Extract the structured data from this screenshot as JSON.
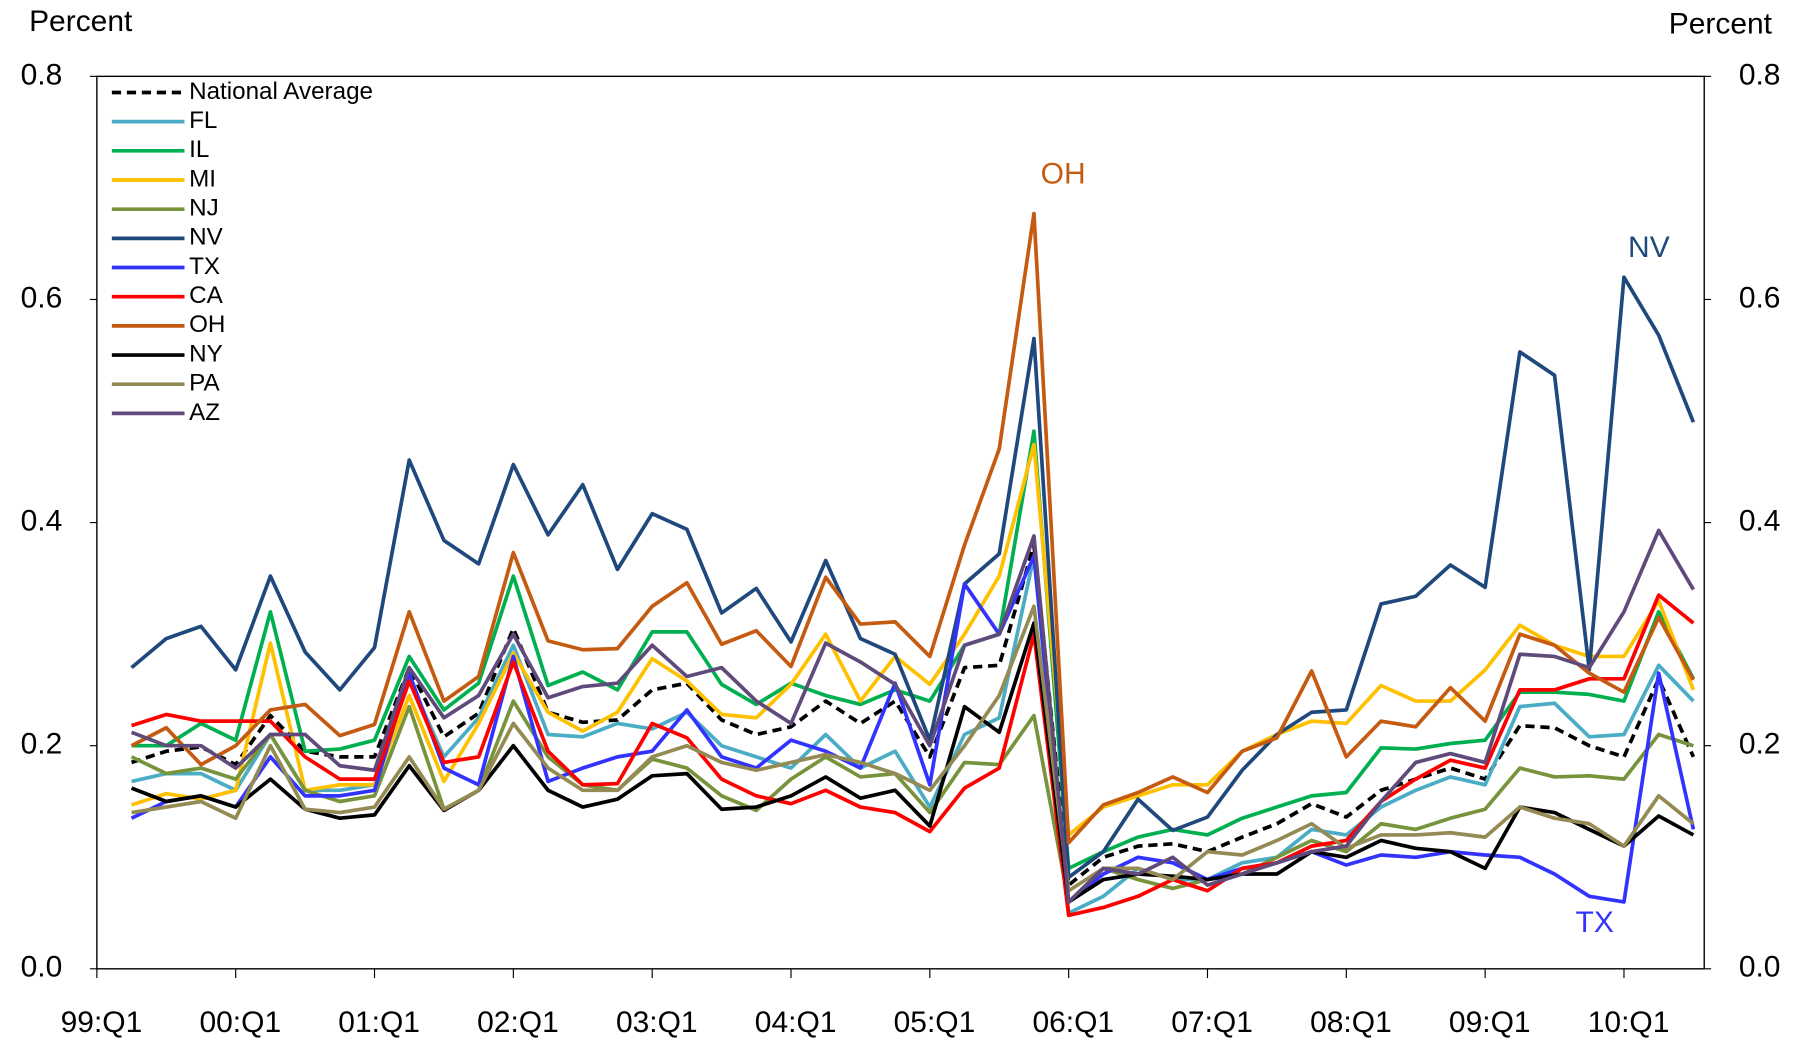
{
  "chart_data": {
    "type": "line",
    "y_label": "Percent",
    "y2_label": "Percent",
    "categories": [
      "99:Q1",
      null,
      null,
      null,
      "00:Q1",
      null,
      null,
      null,
      "01:Q1",
      null,
      null,
      null,
      "02:Q1",
      null,
      null,
      null,
      "03:Q1",
      null,
      null,
      null,
      "04:Q1",
      null,
      null,
      null,
      "05:Q1",
      null,
      null,
      null,
      "06:Q1",
      null,
      null,
      null,
      "07:Q1",
      null,
      null,
      null,
      "08:Q1",
      null,
      null,
      null,
      "09:Q1",
      null,
      null,
      null,
      "10:Q1",
      null,
      null
    ],
    "ylim": [
      0,
      0.8
    ],
    "yticks": [
      {
        "value": 0,
        "label": "0.0"
      },
      0.2,
      0.4,
      0.6,
      0.8
    ],
    "y2lim": [
      0,
      0.8
    ],
    "y2ticks": [
      {
        "value": 0,
        "label": "0.0"
      },
      0.2,
      0.4,
      0.6,
      0.8
    ],
    "legend": "upper left",
    "series": [
      {
        "name": "National Average",
        "color": "#000000",
        "dash": true,
        "values": [
          null,
          0.185,
          0.195,
          0.199,
          0.183,
          0.227,
          0.195,
          0.19,
          0.19,
          0.27,
          0.208,
          0.229,
          0.305,
          0.23,
          0.221,
          0.223,
          0.25,
          0.256,
          0.223,
          0.21,
          0.217,
          0.24,
          0.22,
          0.24,
          0.19,
          0.27,
          0.272,
          0.38,
          0.075,
          0.1,
          0.11,
          0.112,
          0.105,
          0.118,
          0.13,
          0.148,
          0.136,
          0.16,
          0.17,
          0.18,
          0.17,
          0.218,
          0.216,
          0.2,
          0.19,
          0.26,
          0.19
        ]
      },
      {
        "name": "FL",
        "color": "#4bacc6",
        "values": [
          null,
          0.168,
          0.175,
          0.175,
          0.16,
          0.21,
          0.16,
          0.16,
          0.165,
          0.26,
          0.19,
          0.225,
          0.29,
          0.21,
          0.208,
          0.22,
          0.215,
          0.23,
          0.2,
          0.19,
          0.18,
          0.21,
          0.18,
          0.195,
          0.145,
          0.21,
          0.225,
          0.37,
          0.05,
          0.065,
          0.09,
          0.08,
          0.08,
          0.095,
          0.1,
          0.125,
          0.12,
          0.145,
          0.16,
          0.172,
          0.165,
          0.235,
          0.238,
          0.208,
          0.21,
          0.272,
          0.24
        ]
      },
      {
        "name": "IL",
        "color": "#00b050",
        "values": [
          null,
          0.2,
          0.2,
          0.22,
          0.205,
          0.32,
          0.195,
          0.197,
          0.205,
          0.28,
          0.232,
          0.256,
          0.352,
          0.254,
          0.266,
          0.25,
          0.302,
          0.302,
          0.255,
          0.237,
          0.256,
          0.245,
          0.237,
          0.25,
          0.24,
          0.29,
          0.3,
          0.482,
          0.09,
          0.105,
          0.118,
          0.125,
          0.12,
          0.135,
          0.145,
          0.155,
          0.158,
          0.198,
          0.197,
          0.202,
          0.205,
          0.248,
          0.248,
          0.246,
          0.24,
          0.32,
          0.26
        ]
      },
      {
        "name": "MI",
        "color": "#ffc000",
        "values": [
          null,
          0.147,
          0.157,
          0.152,
          0.16,
          0.292,
          0.16,
          0.165,
          0.165,
          0.245,
          0.168,
          0.22,
          0.283,
          0.23,
          0.213,
          0.23,
          0.278,
          0.258,
          0.228,
          0.225,
          0.255,
          0.3,
          0.24,
          0.28,
          0.255,
          0.3,
          0.352,
          0.47,
          0.12,
          0.145,
          0.155,
          0.165,
          0.165,
          0.195,
          0.21,
          0.222,
          0.22,
          0.254,
          0.24,
          0.24,
          0.268,
          0.308,
          0.29,
          0.28,
          0.28,
          0.33,
          0.25
        ]
      },
      {
        "name": "NJ",
        "color": "#77933c",
        "values": [
          null,
          0.19,
          0.175,
          0.18,
          0.17,
          0.21,
          0.16,
          0.15,
          0.155,
          0.235,
          0.143,
          0.16,
          0.24,
          0.19,
          0.165,
          0.16,
          0.188,
          0.18,
          0.155,
          0.142,
          0.17,
          0.19,
          0.172,
          0.175,
          0.14,
          0.185,
          0.183,
          0.227,
          0.06,
          0.09,
          0.08,
          0.072,
          0.08,
          0.085,
          0.1,
          0.115,
          0.105,
          0.13,
          0.125,
          0.135,
          0.143,
          0.18,
          0.172,
          0.173,
          0.17,
          0.21,
          0.2
        ]
      },
      {
        "name": "NV",
        "color": "#1f497d",
        "values": [
          null,
          0.27,
          0.296,
          0.307,
          0.268,
          0.352,
          0.284,
          0.25,
          0.288,
          0.456,
          0.384,
          0.363,
          0.452,
          0.389,
          0.434,
          0.358,
          0.408,
          0.394,
          0.319,
          0.341,
          0.293,
          0.366,
          0.296,
          0.282,
          0.205,
          0.345,
          0.372,
          0.565,
          0.082,
          0.105,
          0.152,
          0.124,
          0.136,
          0.178,
          0.21,
          0.23,
          0.232,
          0.327,
          0.334,
          0.362,
          0.342,
          0.553,
          0.532,
          0.268,
          0.62,
          0.568,
          0.49
        ]
      },
      {
        "name": "TX",
        "color": "#3333ff",
        "values": [
          null,
          0.135,
          0.15,
          0.155,
          0.145,
          0.19,
          0.155,
          0.155,
          0.16,
          0.265,
          0.18,
          0.165,
          0.28,
          0.168,
          0.18,
          0.19,
          0.195,
          0.232,
          0.19,
          0.18,
          0.205,
          0.195,
          0.18,
          0.256,
          0.165,
          0.345,
          0.3,
          0.37,
          0.06,
          0.085,
          0.1,
          0.095,
          0.08,
          0.09,
          0.095,
          0.105,
          0.093,
          0.102,
          0.1,
          0.105,
          0.102,
          0.1,
          0.085,
          0.065,
          0.06,
          0.265,
          0.125
        ]
      },
      {
        "name": "CA",
        "color": "#ff0000",
        "values": [
          null,
          0.218,
          0.228,
          0.222,
          0.222,
          0.222,
          0.19,
          0.17,
          0.17,
          0.258,
          0.185,
          0.19,
          0.275,
          0.195,
          0.165,
          0.166,
          0.22,
          0.207,
          0.17,
          0.155,
          0.148,
          0.16,
          0.145,
          0.14,
          0.123,
          0.162,
          0.18,
          0.3,
          0.048,
          0.055,
          0.065,
          0.08,
          0.07,
          0.09,
          0.095,
          0.11,
          0.115,
          0.15,
          0.17,
          0.187,
          0.18,
          0.25,
          0.25,
          0.26,
          0.26,
          0.335,
          0.31
        ]
      },
      {
        "name": "OH",
        "color": "#c55a11",
        "values": [
          null,
          0.2,
          0.216,
          0.183,
          0.2,
          0.232,
          0.237,
          0.209,
          0.219,
          0.32,
          0.24,
          0.262,
          0.373,
          0.294,
          0.286,
          0.287,
          0.325,
          0.346,
          0.291,
          0.303,
          0.271,
          0.351,
          0.309,
          0.311,
          0.28,
          0.38,
          0.466,
          0.677,
          0.113,
          0.147,
          0.158,
          0.172,
          0.158,
          0.195,
          0.207,
          0.267,
          0.19,
          0.222,
          0.217,
          0.252,
          0.222,
          0.3,
          0.29,
          0.265,
          0.248,
          0.315,
          0.259
        ]
      },
      {
        "name": "NY",
        "color": "#000000",
        "values": [
          null,
          0.162,
          0.15,
          0.155,
          0.145,
          0.17,
          0.143,
          0.135,
          0.138,
          0.182,
          0.142,
          0.16,
          0.2,
          0.16,
          0.145,
          0.152,
          0.173,
          0.175,
          0.143,
          0.145,
          0.155,
          0.172,
          0.153,
          0.16,
          0.128,
          0.235,
          0.212,
          0.31,
          0.06,
          0.08,
          0.085,
          0.083,
          0.08,
          0.085,
          0.085,
          0.105,
          0.1,
          0.115,
          0.108,
          0.105,
          0.09,
          0.145,
          0.14,
          0.125,
          0.11,
          0.137,
          0.12
        ]
      },
      {
        "name": "PA",
        "color": "#948a54",
        "values": [
          null,
          0.14,
          0.145,
          0.15,
          0.135,
          0.2,
          0.143,
          0.14,
          0.145,
          0.19,
          0.143,
          0.16,
          0.22,
          0.18,
          0.16,
          0.16,
          0.19,
          0.2,
          0.185,
          0.178,
          0.185,
          0.192,
          0.185,
          0.175,
          0.16,
          0.2,
          0.245,
          0.325,
          0.07,
          0.09,
          0.09,
          0.08,
          0.105,
          0.102,
          0.115,
          0.13,
          0.108,
          0.12,
          0.12,
          0.122,
          0.118,
          0.145,
          0.135,
          0.13,
          0.11,
          0.155,
          0.13
        ]
      },
      {
        "name": "AZ",
        "color": "#604a7b",
        "values": [
          null,
          0.212,
          0.2,
          0.2,
          0.18,
          0.21,
          0.21,
          0.182,
          0.178,
          0.27,
          0.225,
          0.245,
          0.3,
          0.243,
          0.253,
          0.256,
          0.29,
          0.262,
          0.27,
          0.24,
          0.22,
          0.292,
          0.275,
          0.255,
          0.2,
          0.29,
          0.3,
          0.388,
          0.06,
          0.09,
          0.085,
          0.1,
          0.075,
          0.085,
          0.095,
          0.105,
          0.11,
          0.15,
          0.185,
          0.193,
          0.185,
          0.282,
          0.28,
          0.27,
          0.32,
          0.393,
          0.34
        ]
      }
    ],
    "annotations": [
      "OH",
      "NV",
      "TX"
    ]
  }
}
